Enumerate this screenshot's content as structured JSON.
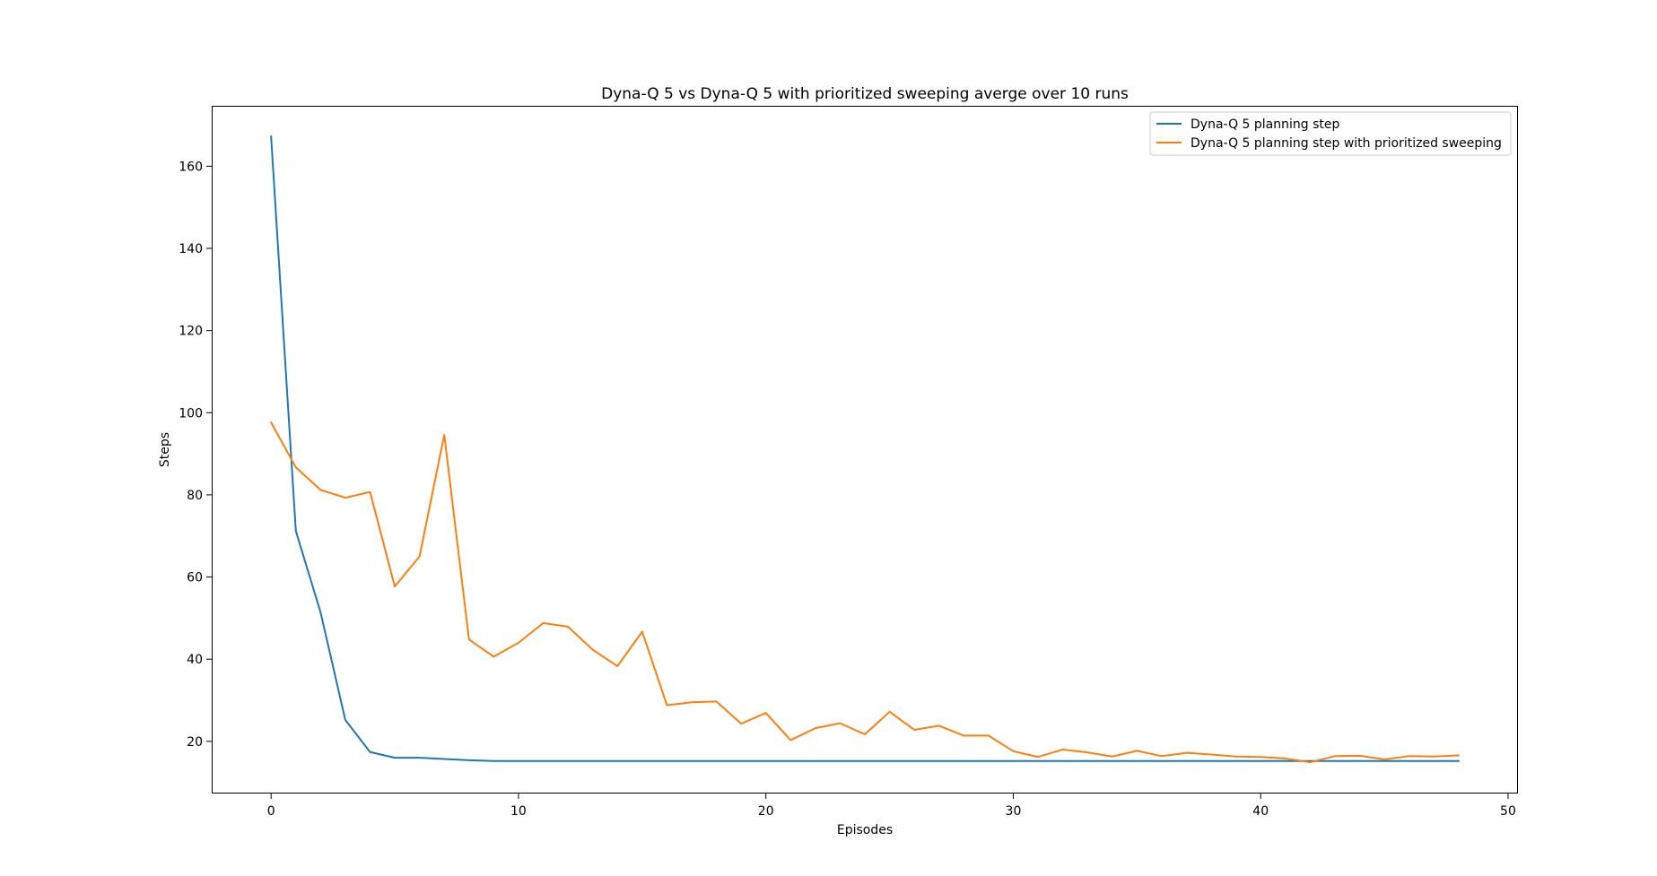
{
  "chart_data": {
    "type": "line",
    "title": "Dyna-Q 5 vs Dyna-Q 5 with prioritized sweeping averge over 10 runs",
    "xlabel": "Episodes",
    "ylabel": "Steps",
    "xlim": [
      -2.4,
      50.4
    ],
    "ylim": [
      7.3,
      174.7
    ],
    "xticks": [
      0,
      10,
      20,
      30,
      40,
      50
    ],
    "yticks": [
      20,
      40,
      60,
      80,
      100,
      120,
      140,
      160
    ],
    "grid": false,
    "legend_position": "upper right",
    "x": [
      0,
      1,
      2,
      3,
      4,
      5,
      6,
      7,
      8,
      9,
      10,
      11,
      12,
      13,
      14,
      15,
      16,
      17,
      18,
      19,
      20,
      21,
      22,
      23,
      24,
      25,
      26,
      27,
      28,
      29,
      30,
      31,
      32,
      33,
      34,
      35,
      36,
      37,
      38,
      39,
      40,
      41,
      42,
      43,
      44,
      45,
      46,
      47,
      48
    ],
    "series": [
      {
        "name": "Dyna-Q 5 planning step",
        "color": "#1f77b4",
        "values": [
          167.2,
          71.2,
          51.4,
          25.2,
          17.4,
          16.0,
          16.0,
          15.7,
          15.4,
          15.2,
          15.2,
          15.2,
          15.2,
          15.2,
          15.2,
          15.2,
          15.2,
          15.2,
          15.2,
          15.2,
          15.2,
          15.2,
          15.2,
          15.2,
          15.2,
          15.2,
          15.2,
          15.2,
          15.2,
          15.2,
          15.2,
          15.2,
          15.2,
          15.2,
          15.2,
          15.2,
          15.2,
          15.2,
          15.2,
          15.2,
          15.2,
          15.2,
          15.2,
          15.2,
          15.2,
          15.2,
          15.2,
          15.2,
          15.2
        ]
      },
      {
        "name": "Dyna-Q 5 planning step with prioritized sweeping",
        "color": "#ff7f0e",
        "values": [
          97.6,
          86.7,
          81.2,
          79.3,
          80.7,
          57.7,
          65.0,
          94.6,
          44.8,
          40.6,
          44.0,
          48.8,
          47.9,
          42.3,
          38.3,
          46.7,
          28.8,
          29.5,
          29.7,
          24.3,
          26.9,
          20.3,
          23.2,
          24.4,
          21.7,
          27.2,
          22.8,
          23.8,
          21.4,
          21.4,
          17.6,
          16.2,
          18.0,
          17.3,
          16.3,
          17.7,
          16.4,
          17.2,
          16.8,
          16.3,
          16.2,
          15.8,
          14.9,
          16.4,
          16.5,
          15.6,
          16.4,
          16.3,
          16.6
        ]
      }
    ]
  }
}
